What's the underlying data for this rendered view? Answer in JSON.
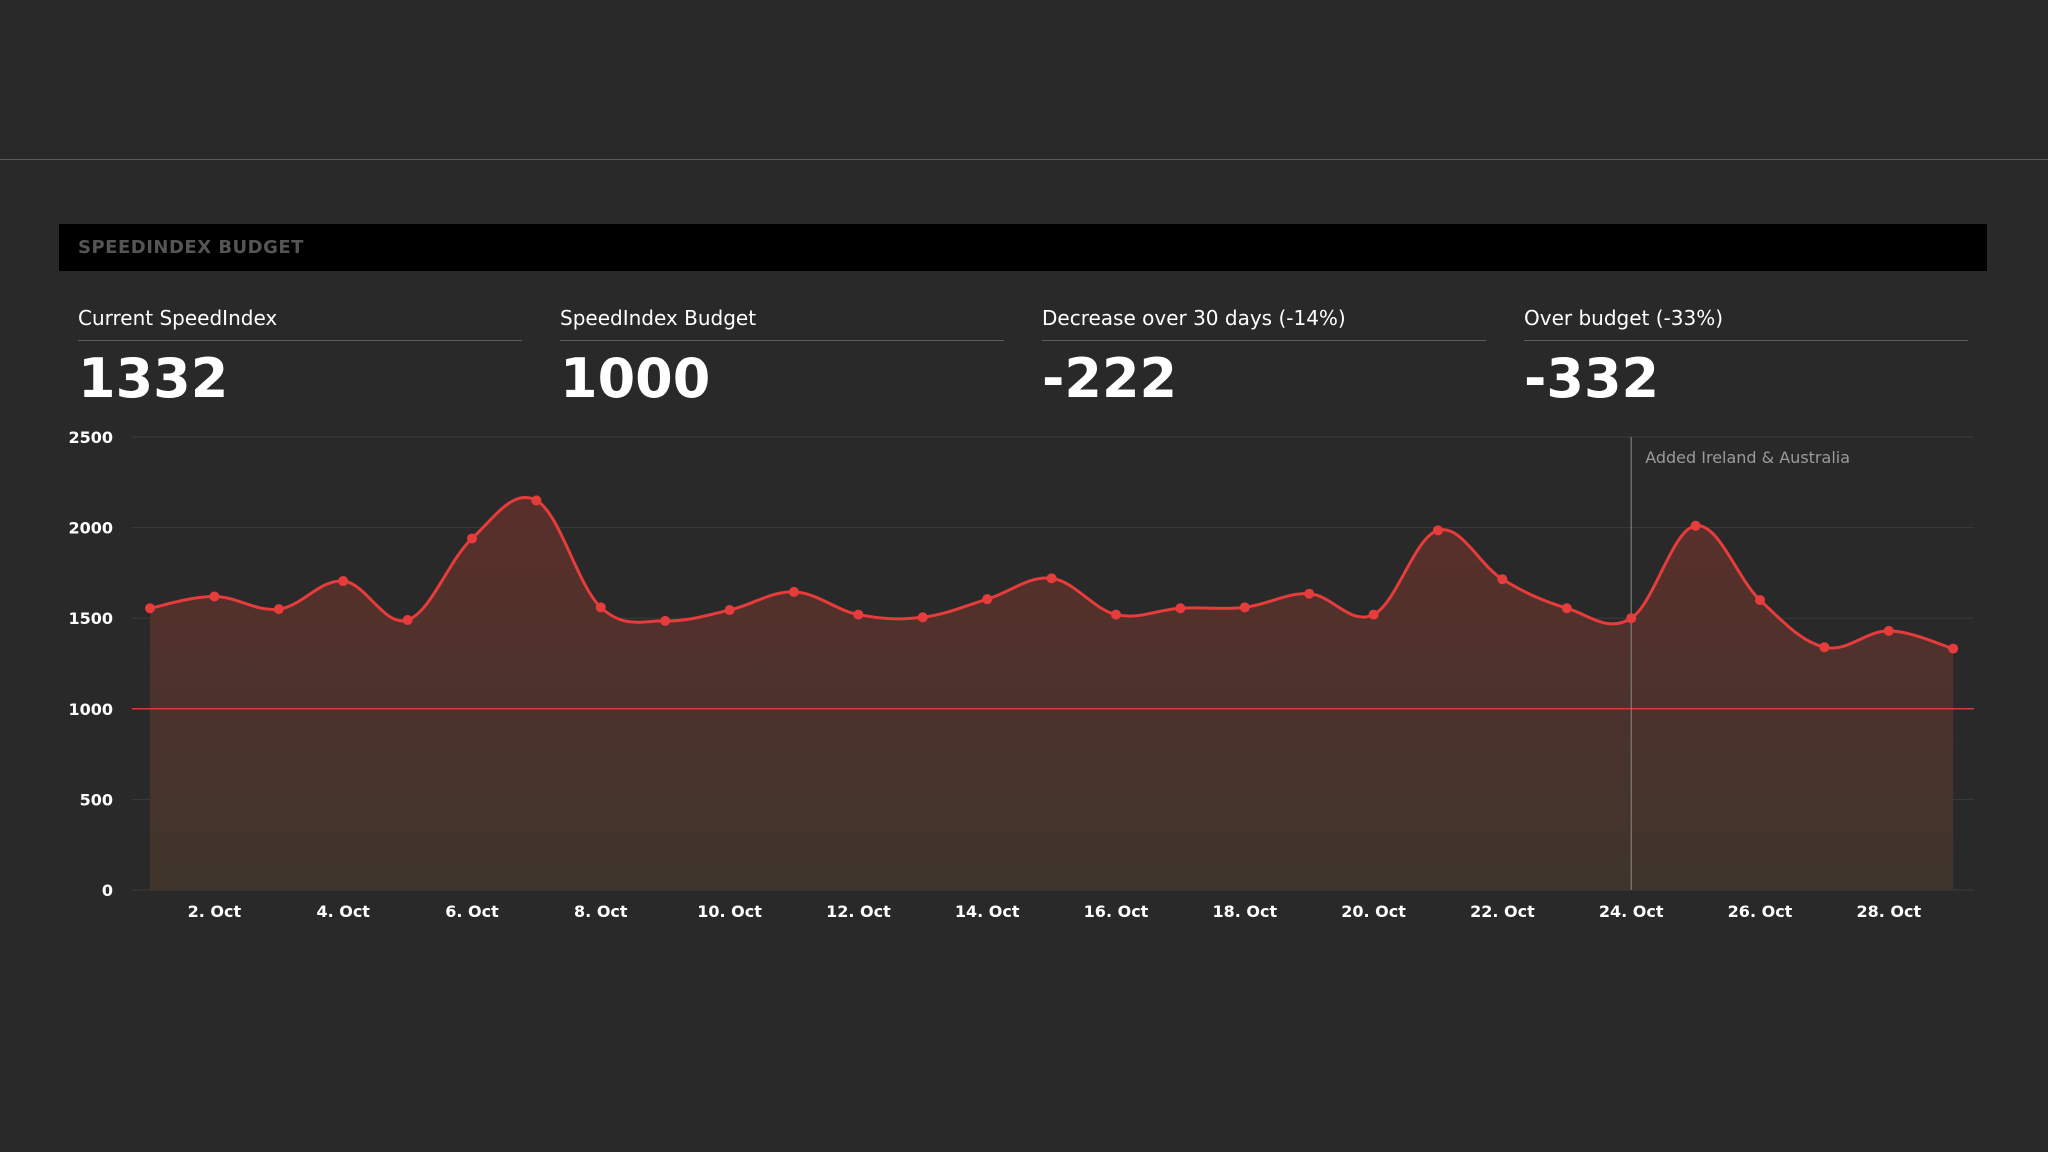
{
  "panel": {
    "title": "SPEEDINDEX BUDGET"
  },
  "stats": [
    {
      "label": "Current SpeedIndex",
      "value": "1332"
    },
    {
      "label": "SpeedIndex Budget",
      "value": "1000"
    },
    {
      "label": "Decrease over 30 days (-14%)",
      "value": "-222"
    },
    {
      "label": "Over budget (-33%)",
      "value": "-332"
    }
  ],
  "colors": {
    "background": "#292929",
    "line": "#e63c3c",
    "area_top": "#5a2f2b",
    "area_bottom": "#3f352c",
    "budget_line": "#d63b36",
    "grid": "#3a3a3a",
    "annotation_line": "#8a8a8a"
  },
  "chart_data": {
    "type": "area",
    "x": [
      "1. Oct",
      "2. Oct",
      "3. Oct",
      "4. Oct",
      "5. Oct",
      "6. Oct",
      "7. Oct",
      "8. Oct",
      "9. Oct",
      "10. Oct",
      "11. Oct",
      "12. Oct",
      "13. Oct",
      "14. Oct",
      "15. Oct",
      "16. Oct",
      "17. Oct",
      "18. Oct",
      "19. Oct",
      "20. Oct",
      "21. Oct",
      "22. Oct",
      "23. Oct",
      "24. Oct",
      "25. Oct",
      "26. Oct",
      "27. Oct",
      "28. Oct",
      "29. Oct"
    ],
    "values": [
      1555,
      1620,
      1550,
      1705,
      1490,
      1940,
      2150,
      1560,
      1485,
      1545,
      1645,
      1520,
      1505,
      1605,
      1720,
      1520,
      1555,
      1560,
      1635,
      1520,
      1985,
      1715,
      1555,
      1500,
      2010,
      1600,
      1340,
      1430,
      1332
    ],
    "xticks": [
      "2. Oct",
      "4. Oct",
      "6. Oct",
      "8. Oct",
      "10. Oct",
      "12. Oct",
      "14. Oct",
      "16. Oct",
      "18. Oct",
      "20. Oct",
      "22. Oct",
      "24. Oct",
      "26. Oct",
      "28. Oct"
    ],
    "yticks": [
      0,
      500,
      1000,
      1500,
      2000,
      2500
    ],
    "ylim": [
      0,
      2500
    ],
    "budget": 1000,
    "annotation": {
      "x": "24. Oct",
      "text": "Added Ireland & Australia"
    },
    "grid": true
  }
}
